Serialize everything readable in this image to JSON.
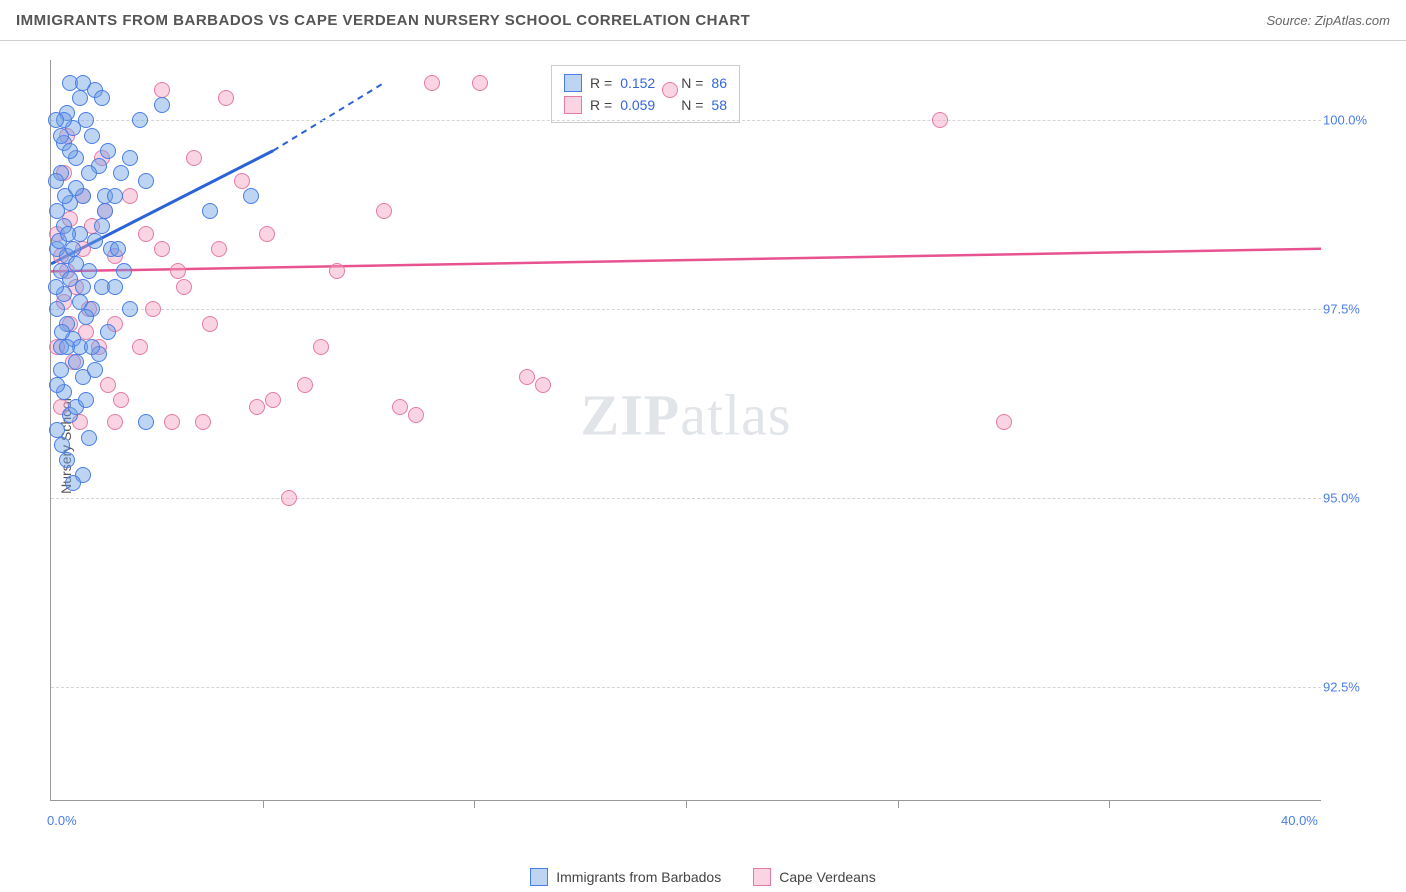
{
  "header": {
    "title": "IMMIGRANTS FROM BARBADOS VS CAPE VERDEAN NURSERY SCHOOL CORRELATION CHART",
    "source_prefix": "Source: ",
    "source_name": "ZipAtlas.com"
  },
  "watermark": {
    "z": "ZIP",
    "rest": "atlas"
  },
  "chart": {
    "type": "scatter",
    "xlim": [
      0,
      40
    ],
    "ylim": [
      91,
      100.8
    ],
    "x_ticks": [
      0,
      40
    ],
    "x_tick_labels": [
      "0.0%",
      "40.0%"
    ],
    "x_minor_ticks": [
      6.67,
      13.33,
      20,
      26.67,
      33.33
    ],
    "y_ticks": [
      92.5,
      95.0,
      97.5,
      100.0
    ],
    "y_tick_labels": [
      "92.5%",
      "95.0%",
      "97.5%",
      "100.0%"
    ],
    "yaxis_label": "Nursery School",
    "background": "#ffffff",
    "grid_color": "#d5d5d5",
    "point_radius": 8,
    "series": {
      "barbados": {
        "label": "Immigrants from Barbados",
        "fill": "rgba(108,160,228,0.45)",
        "stroke": "#4a7de8",
        "trend_color": "#2a62d8",
        "R": "0.152",
        "N": "86",
        "trend": {
          "x1": 0,
          "y1": 98.1,
          "x2_solid": 7,
          "y2_solid": 99.6,
          "x2_dash": 10.5,
          "y2_dash": 100.5
        },
        "points": [
          [
            0.6,
            100.5
          ],
          [
            1.0,
            100.5
          ],
          [
            1.4,
            100.4
          ],
          [
            0.9,
            100.3
          ],
          [
            1.6,
            100.3
          ],
          [
            0.5,
            100.1
          ],
          [
            1.1,
            100.0
          ],
          [
            0.7,
            99.9
          ],
          [
            1.3,
            99.8
          ],
          [
            0.4,
            99.7
          ],
          [
            1.8,
            99.6
          ],
          [
            0.8,
            99.5
          ],
          [
            1.5,
            99.4
          ],
          [
            0.3,
            99.3
          ],
          [
            2.2,
            99.3
          ],
          [
            1.0,
            99.0
          ],
          [
            0.6,
            98.9
          ],
          [
            1.7,
            98.8
          ],
          [
            0.2,
            98.8
          ],
          [
            3.5,
            100.2
          ],
          [
            2.8,
            100.0
          ],
          [
            2.5,
            99.5
          ],
          [
            3.0,
            99.2
          ],
          [
            6.3,
            99.0
          ],
          [
            5.0,
            98.8
          ],
          [
            0.4,
            98.6
          ],
          [
            0.9,
            98.5
          ],
          [
            1.4,
            98.4
          ],
          [
            0.2,
            98.3
          ],
          [
            1.9,
            98.3
          ],
          [
            0.5,
            98.2
          ],
          [
            0.8,
            98.1
          ],
          [
            1.2,
            98.0
          ],
          [
            0.3,
            98.0
          ],
          [
            2.3,
            98.0
          ],
          [
            0.6,
            97.9
          ],
          [
            1.6,
            97.8
          ],
          [
            0.4,
            97.7
          ],
          [
            0.9,
            97.6
          ],
          [
            1.3,
            97.5
          ],
          [
            0.2,
            97.5
          ],
          [
            1.1,
            97.4
          ],
          [
            0.5,
            97.3
          ],
          [
            1.8,
            97.2
          ],
          [
            0.7,
            97.1
          ],
          [
            0.3,
            97.0
          ],
          [
            1.5,
            96.9
          ],
          [
            0.8,
            96.8
          ],
          [
            1.0,
            96.6
          ],
          [
            0.4,
            96.4
          ],
          [
            0.6,
            96.1
          ],
          [
            0.2,
            95.9
          ],
          [
            1.2,
            95.8
          ],
          [
            0.5,
            95.5
          ],
          [
            1.0,
            95.3
          ],
          [
            0.3,
            96.7
          ],
          [
            3.0,
            96.0
          ],
          [
            2.0,
            97.8
          ],
          [
            2.5,
            97.5
          ],
          [
            1.7,
            99.0
          ],
          [
            0.15,
            99.2
          ],
          [
            0.25,
            98.4
          ],
          [
            0.35,
            97.2
          ],
          [
            0.45,
            99.0
          ],
          [
            0.55,
            98.5
          ],
          [
            0.7,
            98.3
          ],
          [
            0.15,
            97.8
          ],
          [
            1.0,
            97.8
          ],
          [
            0.2,
            96.5
          ],
          [
            0.8,
            96.2
          ],
          [
            1.4,
            96.7
          ],
          [
            0.6,
            99.6
          ],
          [
            1.2,
            99.3
          ],
          [
            0.4,
            100.0
          ],
          [
            1.6,
            98.6
          ],
          [
            0.9,
            97.0
          ],
          [
            0.15,
            100.0
          ],
          [
            2.1,
            98.3
          ],
          [
            0.35,
            95.7
          ],
          [
            0.7,
            95.2
          ],
          [
            1.1,
            96.3
          ],
          [
            0.3,
            99.8
          ],
          [
            0.5,
            97.0
          ],
          [
            2.0,
            99.0
          ],
          [
            1.3,
            97.0
          ],
          [
            0.8,
            99.1
          ]
        ]
      },
      "capeverdean": {
        "label": "Cape Verdeans",
        "fill": "rgba(244,160,190,0.45)",
        "stroke": "#e57ba5",
        "trend_color": "#e8528f",
        "R": "0.059",
        "N": "58",
        "trend": {
          "x1": 0,
          "y1": 98.0,
          "x2": 40,
          "y2": 98.3
        },
        "points": [
          [
            0.3,
            98.2
          ],
          [
            0.5,
            98.0
          ],
          [
            0.8,
            97.8
          ],
          [
            1.0,
            98.3
          ],
          [
            0.4,
            97.6
          ],
          [
            1.2,
            97.5
          ],
          [
            0.6,
            97.3
          ],
          [
            1.5,
            97.0
          ],
          [
            0.2,
            98.5
          ],
          [
            2.0,
            98.2
          ],
          [
            0.7,
            96.8
          ],
          [
            1.8,
            96.5
          ],
          [
            0.3,
            96.2
          ],
          [
            2.5,
            99.0
          ],
          [
            3.0,
            98.5
          ],
          [
            3.5,
            100.4
          ],
          [
            4.0,
            98.0
          ],
          [
            5.5,
            100.3
          ],
          [
            4.5,
            99.5
          ],
          [
            6.0,
            99.2
          ],
          [
            7.0,
            96.3
          ],
          [
            8.5,
            97.0
          ],
          [
            5.0,
            97.3
          ],
          [
            4.8,
            96.0
          ],
          [
            6.5,
            96.2
          ],
          [
            9.0,
            98.0
          ],
          [
            10.5,
            98.8
          ],
          [
            12.0,
            100.5
          ],
          [
            13.5,
            100.5
          ],
          [
            11.0,
            96.2
          ],
          [
            11.5,
            96.1
          ],
          [
            7.5,
            95.0
          ],
          [
            8.0,
            96.5
          ],
          [
            3.8,
            96.0
          ],
          [
            2.2,
            96.3
          ],
          [
            1.7,
            98.8
          ],
          [
            15.0,
            96.6
          ],
          [
            15.5,
            96.5
          ],
          [
            19.5,
            100.4
          ],
          [
            28.0,
            100.0
          ],
          [
            30.0,
            96.0
          ],
          [
            1.0,
            99.0
          ],
          [
            0.4,
            99.3
          ],
          [
            0.9,
            96.0
          ],
          [
            1.3,
            98.6
          ],
          [
            2.8,
            97.0
          ],
          [
            3.2,
            97.5
          ],
          [
            4.2,
            97.8
          ],
          [
            1.6,
            99.5
          ],
          [
            0.5,
            99.8
          ],
          [
            0.2,
            97.0
          ],
          [
            2.0,
            97.3
          ],
          [
            5.3,
            98.3
          ],
          [
            6.8,
            98.5
          ],
          [
            1.1,
            97.2
          ],
          [
            0.6,
            98.7
          ],
          [
            3.5,
            98.3
          ],
          [
            2.0,
            96.0
          ]
        ]
      }
    },
    "legend_box": {
      "r_label": "R =",
      "n_label": "N ="
    }
  }
}
